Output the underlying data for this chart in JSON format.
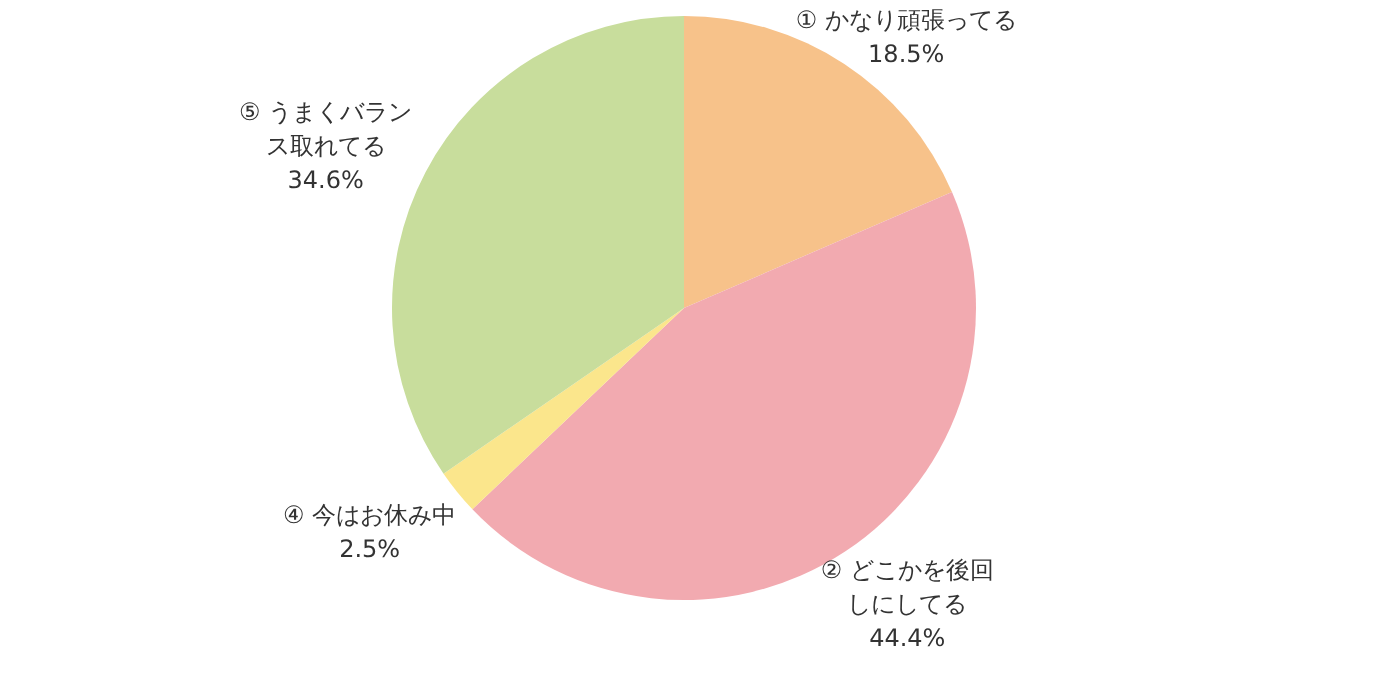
{
  "chart_data": {
    "type": "pie",
    "categories": [
      "① かなり頑張ってる",
      "② どこかを後回しにしてる",
      "④ 今はお休み中",
      "⑤ うまくバランス取れてる"
    ],
    "values": [
      18.5,
      44.4,
      2.5,
      34.6
    ],
    "colors": [
      "#f7c28a",
      "#f2aab0",
      "#fbe68c",
      "#c8dd9c"
    ],
    "value_labels": [
      "18.5%",
      "44.4%",
      "2.5%",
      "34.6%"
    ]
  }
}
